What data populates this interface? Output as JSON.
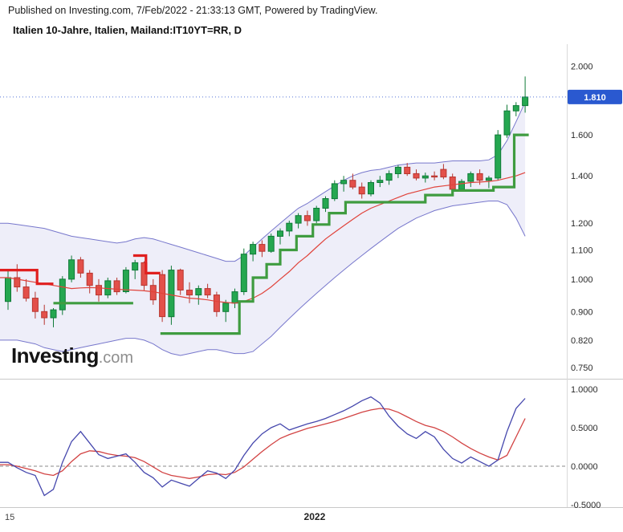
{
  "header": {
    "published_line": "Published on Investing.com, 7/Feb/2022 - 21:33:13 GMT, Powered by TradingView.",
    "title": "Italien 10-Jahre, Italien, Mailand:IT10YT=RR, D"
  },
  "watermark": {
    "brand": "Investing",
    "suffix": ".com"
  },
  "colors": {
    "up": "#25a750",
    "up_border": "#0f7a37",
    "down": "#e3504a",
    "down_border": "#b7352f",
    "band_line": "#7777cc",
    "band_fill": "rgba(125,125,205,0.13)",
    "ma": "#e0433b",
    "trend_green": "#3f9c40",
    "trend_red": "#e01f1f",
    "last_price_line": "#5575d6",
    "badge_bg": "#2a59d0",
    "badge_text": "#ffffff",
    "osc_main": "#4547ad",
    "osc_signal": "#d24343",
    "zero_line": "#8a8a8a",
    "axis_text": "#2a2a2a",
    "separator": "#c9c9c9"
  },
  "chart_data": [
    {
      "type": "candlestick",
      "title": "Italien 10-Jahre, Italien, Mailand:IT10YT=RR, D",
      "timeframe": "D",
      "scale": "log",
      "ylim": [
        0.725,
        2.15
      ],
      "y_ticks": [
        {
          "value": 2.0,
          "label": "2.000"
        },
        {
          "value": 1.6,
          "label": "1.600"
        },
        {
          "value": 1.4,
          "label": "1.400"
        },
        {
          "value": 1.2,
          "label": "1.200"
        },
        {
          "value": 1.1,
          "label": "1.100"
        },
        {
          "value": 1.0,
          "label": "1.000"
        },
        {
          "value": 0.9,
          "label": "0.900"
        },
        {
          "value": 0.82,
          "label": "0.820"
        },
        {
          "value": 0.75,
          "label": "0.750"
        }
      ],
      "last_price": {
        "value": 1.81,
        "label": "1.810"
      },
      "x_ticks": [
        {
          "label": "15",
          "i": -0.35,
          "align": "start",
          "bold": false
        },
        {
          "label": "2022",
          "i": 33.8,
          "align": "middle",
          "bold": true
        }
      ],
      "candles": [
        [
          0.93,
          1.03,
          0.905,
          1.005
        ],
        [
          1.005,
          1.05,
          0.96,
          0.975
        ],
        [
          0.975,
          1.0,
          0.93,
          0.94
        ],
        [
          0.94,
          0.96,
          0.88,
          0.9
        ],
        [
          0.9,
          0.92,
          0.862,
          0.882
        ],
        [
          0.882,
          0.91,
          0.855,
          0.905
        ],
        [
          0.905,
          1.01,
          0.89,
          1.0
        ],
        [
          1.0,
          1.08,
          0.99,
          1.065
        ],
        [
          1.065,
          1.075,
          1.005,
          1.02
        ],
        [
          1.02,
          1.03,
          0.955,
          0.98
        ],
        [
          0.98,
          1.0,
          0.93,
          0.95
        ],
        [
          0.95,
          1.005,
          0.94,
          0.995
        ],
        [
          0.995,
          1.005,
          0.95,
          0.96
        ],
        [
          0.96,
          1.04,
          0.955,
          1.03
        ],
        [
          1.03,
          1.065,
          1.0,
          1.055
        ],
        [
          1.055,
          1.06,
          0.965,
          0.98
        ],
        [
          0.98,
          1.0,
          0.92,
          0.935
        ],
        [
          1.015,
          1.03,
          0.87,
          0.885
        ],
        [
          0.885,
          1.045,
          0.862,
          1.03
        ],
        [
          1.03,
          1.035,
          0.95,
          0.965
        ],
        [
          0.965,
          0.99,
          0.925,
          0.95
        ],
        [
          0.95,
          0.98,
          0.92,
          0.97
        ],
        [
          0.97,
          0.985,
          0.94,
          0.95
        ],
        [
          0.95,
          0.96,
          0.885,
          0.9
        ],
        [
          0.9,
          0.935,
          0.87,
          0.925
        ],
        [
          0.925,
          0.97,
          0.91,
          0.96
        ],
        [
          0.96,
          1.105,
          0.95,
          1.085
        ],
        [
          1.085,
          1.13,
          1.06,
          1.12
        ],
        [
          1.12,
          1.135,
          1.075,
          1.095
        ],
        [
          1.095,
          1.16,
          1.09,
          1.15
        ],
        [
          1.15,
          1.18,
          1.12,
          1.17
        ],
        [
          1.17,
          1.21,
          1.15,
          1.2
        ],
        [
          1.2,
          1.24,
          1.18,
          1.23
        ],
        [
          1.23,
          1.25,
          1.19,
          1.21
        ],
        [
          1.21,
          1.27,
          1.2,
          1.26
        ],
        [
          1.26,
          1.31,
          1.245,
          1.3
        ],
        [
          1.3,
          1.38,
          1.29,
          1.365
        ],
        [
          1.365,
          1.4,
          1.33,
          1.38
        ],
        [
          1.38,
          1.41,
          1.34,
          1.35
        ],
        [
          1.35,
          1.37,
          1.3,
          1.32
        ],
        [
          1.32,
          1.38,
          1.31,
          1.37
        ],
        [
          1.37,
          1.4,
          1.35,
          1.38
        ],
        [
          1.38,
          1.425,
          1.36,
          1.41
        ],
        [
          1.41,
          1.45,
          1.39,
          1.44
        ],
        [
          1.44,
          1.46,
          1.4,
          1.41
        ],
        [
          1.41,
          1.43,
          1.38,
          1.39
        ],
        [
          1.39,
          1.415,
          1.37,
          1.4
        ],
        [
          1.4,
          1.42,
          1.38,
          1.395
        ],
        [
          1.43,
          1.455,
          1.385,
          1.395
        ],
        [
          1.395,
          1.41,
          1.325,
          1.34
        ],
        [
          1.34,
          1.385,
          1.33,
          1.375
        ],
        [
          1.375,
          1.42,
          1.35,
          1.41
        ],
        [
          1.41,
          1.43,
          1.36,
          1.38
        ],
        [
          1.38,
          1.4,
          1.345,
          1.39
        ],
        [
          1.39,
          1.625,
          1.38,
          1.6
        ],
        [
          1.6,
          1.765,
          1.585,
          1.73
        ],
        [
          1.73,
          1.78,
          1.7,
          1.76
        ],
        [
          1.76,
          1.935,
          1.72,
          1.81
        ]
      ],
      "bollinger": {
        "upper": [
          1.2,
          1.195,
          1.19,
          1.185,
          1.18,
          1.17,
          1.16,
          1.15,
          1.145,
          1.14,
          1.135,
          1.13,
          1.125,
          1.13,
          1.14,
          1.145,
          1.14,
          1.13,
          1.12,
          1.11,
          1.1,
          1.09,
          1.08,
          1.07,
          1.06,
          1.06,
          1.08,
          1.11,
          1.14,
          1.17,
          1.2,
          1.23,
          1.26,
          1.28,
          1.305,
          1.33,
          1.355,
          1.38,
          1.4,
          1.415,
          1.425,
          1.43,
          1.44,
          1.45,
          1.455,
          1.46,
          1.46,
          1.46,
          1.465,
          1.47,
          1.47,
          1.47,
          1.47,
          1.475,
          1.5,
          1.57,
          1.67,
          1.78
        ],
        "middle": [
          1.005,
          1.0,
          0.995,
          0.99,
          0.985,
          0.98,
          0.975,
          0.97,
          0.972,
          0.973,
          0.972,
          0.97,
          0.968,
          0.966,
          0.965,
          0.963,
          0.96,
          0.955,
          0.95,
          0.945,
          0.94,
          0.938,
          0.935,
          0.93,
          0.927,
          0.925,
          0.93,
          0.94,
          0.955,
          0.975,
          1.0,
          1.025,
          1.055,
          1.08,
          1.11,
          1.14,
          1.165,
          1.19,
          1.215,
          1.24,
          1.26,
          1.275,
          1.29,
          1.305,
          1.32,
          1.33,
          1.34,
          1.35,
          1.355,
          1.36,
          1.365,
          1.37,
          1.372,
          1.375,
          1.38,
          1.39,
          1.4,
          1.415
        ],
        "lower": [
          0.82,
          0.82,
          0.815,
          0.81,
          0.8,
          0.795,
          0.79,
          0.795,
          0.8,
          0.805,
          0.81,
          0.815,
          0.82,
          0.825,
          0.825,
          0.82,
          0.81,
          0.795,
          0.785,
          0.78,
          0.785,
          0.79,
          0.795,
          0.795,
          0.79,
          0.785,
          0.785,
          0.79,
          0.81,
          0.83,
          0.855,
          0.88,
          0.905,
          0.93,
          0.955,
          0.98,
          1.005,
          1.03,
          1.055,
          1.08,
          1.105,
          1.13,
          1.155,
          1.18,
          1.2,
          1.22,
          1.235,
          1.25,
          1.26,
          1.27,
          1.275,
          1.28,
          1.285,
          1.29,
          1.29,
          1.275,
          1.22,
          1.15
        ]
      },
      "trend_segments": [
        {
          "color": "red",
          "points": [
            [
              -0.9,
              1.03
            ],
            [
              3.2,
              1.03
            ],
            [
              3.2,
              0.985
            ],
            [
              5.0,
              0.985
            ]
          ]
        },
        {
          "color": "green",
          "points": [
            [
              5.0,
              0.925
            ],
            [
              13.8,
              0.925
            ]
          ]
        },
        {
          "color": "red",
          "points": [
            [
              13.8,
              1.08
            ],
            [
              15.2,
              1.08
            ],
            [
              15.2,
              1.02
            ],
            [
              16.8,
              1.02
            ]
          ]
        },
        {
          "color": "green",
          "points": [
            [
              16.8,
              0.838
            ],
            [
              25.5,
              0.838
            ],
            [
              25.5,
              0.93
            ],
            [
              27,
              0.93
            ],
            [
              27,
              1.005
            ],
            [
              28.5,
              1.005
            ],
            [
              28.5,
              1.05
            ],
            [
              30,
              1.05
            ],
            [
              30,
              1.1
            ],
            [
              31.8,
              1.1
            ],
            [
              31.8,
              1.15
            ],
            [
              33.6,
              1.15
            ],
            [
              33.6,
              1.195
            ],
            [
              35.4,
              1.195
            ],
            [
              35.4,
              1.24
            ],
            [
              37.2,
              1.24
            ],
            [
              37.2,
              1.285
            ],
            [
              46,
              1.285
            ],
            [
              46,
              1.315
            ],
            [
              49,
              1.315
            ],
            [
              49,
              1.335
            ],
            [
              53.5,
              1.335
            ],
            [
              53.5,
              1.35
            ],
            [
              55.8,
              1.35
            ],
            [
              55.8,
              1.6
            ],
            [
              57.4,
              1.6
            ]
          ]
        }
      ]
    },
    {
      "type": "line",
      "ylim": [
        -0.521,
        1.083
      ],
      "y_ticks": [
        {
          "value": 1.0,
          "label": "1.0000"
        },
        {
          "value": 0.5,
          "label": "0.5000"
        },
        {
          "value": 0.0,
          "label": "0.0000"
        },
        {
          "value": -0.5,
          "label": "-0.5000"
        }
      ],
      "zero_line": 0,
      "series": [
        {
          "name": "oscillator",
          "color_key": "osc_main",
          "values": [
            0.05,
            -0.02,
            -0.08,
            -0.12,
            -0.38,
            -0.3,
            0.05,
            0.32,
            0.45,
            0.3,
            0.15,
            0.1,
            0.13,
            0.16,
            0.05,
            -0.08,
            -0.15,
            -0.27,
            -0.18,
            -0.22,
            -0.26,
            -0.16,
            -0.06,
            -0.09,
            -0.16,
            -0.05,
            0.14,
            0.3,
            0.42,
            0.5,
            0.55,
            0.47,
            0.51,
            0.55,
            0.58,
            0.62,
            0.67,
            0.72,
            0.78,
            0.85,
            0.9,
            0.82,
            0.65,
            0.52,
            0.42,
            0.36,
            0.45,
            0.38,
            0.22,
            0.1,
            0.04,
            0.12,
            0.06,
            0.0,
            0.08,
            0.45,
            0.75,
            0.88
          ]
        },
        {
          "name": "signal",
          "color_key": "osc_signal",
          "values": [
            0.02,
            0.0,
            -0.03,
            -0.06,
            -0.1,
            -0.12,
            -0.06,
            0.06,
            0.16,
            0.2,
            0.19,
            0.16,
            0.14,
            0.13,
            0.11,
            0.06,
            -0.01,
            -0.08,
            -0.12,
            -0.14,
            -0.16,
            -0.14,
            -0.11,
            -0.1,
            -0.11,
            -0.08,
            -0.01,
            0.09,
            0.19,
            0.28,
            0.36,
            0.41,
            0.45,
            0.49,
            0.52,
            0.55,
            0.58,
            0.62,
            0.66,
            0.7,
            0.73,
            0.75,
            0.74,
            0.7,
            0.64,
            0.58,
            0.53,
            0.5,
            0.45,
            0.38,
            0.3,
            0.23,
            0.17,
            0.12,
            0.08,
            0.14,
            0.38,
            0.62
          ]
        }
      ]
    }
  ]
}
